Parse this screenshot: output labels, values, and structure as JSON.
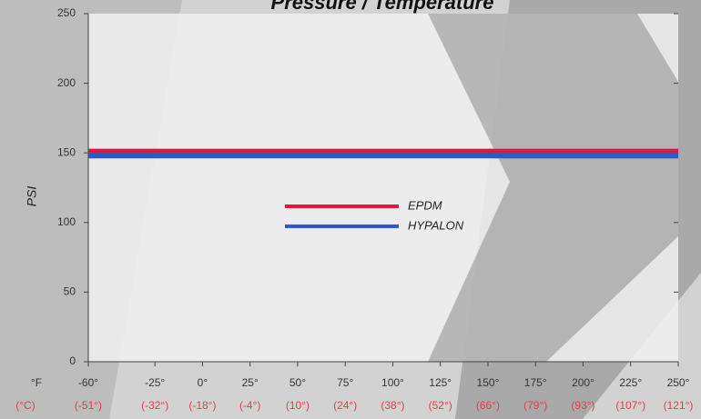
{
  "chart_data": {
    "type": "line",
    "title": "Pressure / Temperature",
    "y_label": "PSI",
    "x_unit": "°F",
    "x2_unit": "(°C)",
    "x": [
      -60,
      250
    ],
    "series": [
      {
        "name": "EPDM",
        "color": "#e3173e",
        "values": [
          151,
          151
        ]
      },
      {
        "name": "HYPALON",
        "color": "#2a5bc8",
        "values": [
          148,
          148
        ]
      }
    ],
    "xlim": [
      -60,
      250
    ],
    "xticks": [
      {
        "value": -60,
        "label": "-60°"
      },
      {
        "value": -25,
        "label": "-25°"
      },
      {
        "value": 0,
        "label": "0°"
      },
      {
        "value": 25,
        "label": "25°"
      },
      {
        "value": 50,
        "label": "50°"
      },
      {
        "value": 75,
        "label": "75°"
      },
      {
        "value": 100,
        "label": "100°"
      },
      {
        "value": 125,
        "label": "125°"
      },
      {
        "value": 150,
        "label": "150°"
      },
      {
        "value": 175,
        "label": "175°"
      },
      {
        "value": 200,
        "label": "200°"
      },
      {
        "value": 225,
        "label": "225°"
      },
      {
        "value": 250,
        "label": "250°"
      }
    ],
    "x2_labels": [
      "(-51°)",
      "(-32°)",
      "(-18°)",
      "(-4°)",
      "(10°)",
      "(24°)",
      "(38°)",
      "(52°)",
      "(66°)",
      "(79°)",
      "(93°)",
      "(107°)",
      "(121°)"
    ],
    "ylim": [
      0,
      250
    ],
    "yticks": [
      0,
      50,
      100,
      150,
      200,
      250
    ]
  }
}
